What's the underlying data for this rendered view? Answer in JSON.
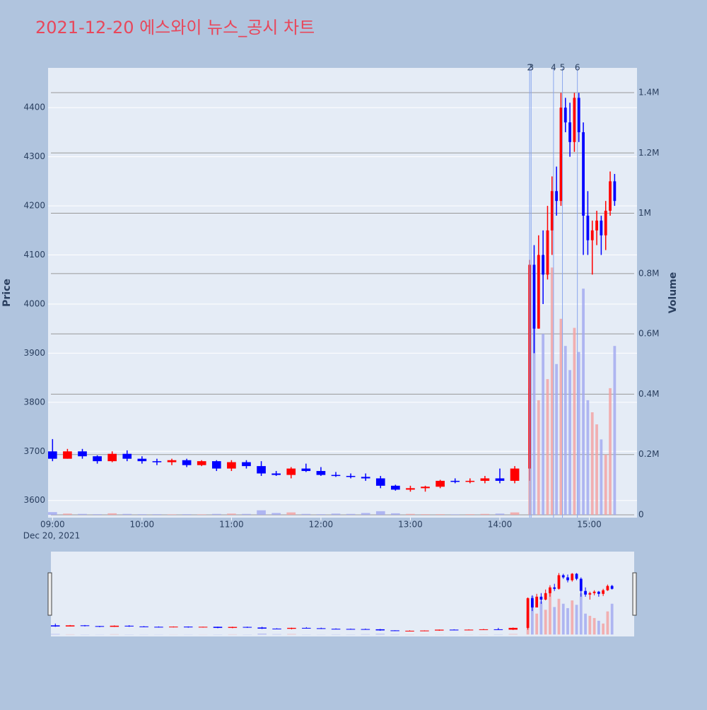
{
  "chart_data": {
    "type": "candlestick",
    "title": "2021-12-20 에스와이 뉴스_공시 차트",
    "y_label": "Price",
    "y2_label": "Volume",
    "x_date_label": "Dec 20, 2021",
    "increasing_color": "#ff0000",
    "decreasing_color": "#0000ff",
    "volume_up_color": "#f4a0a0",
    "volume_down_color": "#a0a8f0",
    "annotation_color": "#8aa6ee",
    "x": [
      "2021-12-20 09:00",
      "2021-12-20 09:10",
      "2021-12-20 09:20",
      "2021-12-20 09:30",
      "2021-12-20 09:40",
      "2021-12-20 09:50",
      "2021-12-20 10:00",
      "2021-12-20 10:10",
      "2021-12-20 10:20",
      "2021-12-20 10:30",
      "2021-12-20 10:40",
      "2021-12-20 10:50",
      "2021-12-20 11:00",
      "2021-12-20 11:10",
      "2021-12-20 11:20",
      "2021-12-20 11:30",
      "2021-12-20 11:40",
      "2021-12-20 11:50",
      "2021-12-20 12:00",
      "2021-12-20 12:10",
      "2021-12-20 12:20",
      "2021-12-20 12:30",
      "2021-12-20 12:40",
      "2021-12-20 12:50",
      "2021-12-20 13:00",
      "2021-12-20 13:10",
      "2021-12-20 13:20",
      "2021-12-20 13:30",
      "2021-12-20 13:40",
      "2021-12-20 13:50",
      "2021-12-20 14:00",
      "2021-12-20 14:10",
      "2021-12-20 14:20",
      "2021-12-20 14:23",
      "2021-12-20 14:26",
      "2021-12-20 14:29",
      "2021-12-20 14:32",
      "2021-12-20 14:35",
      "2021-12-20 14:38",
      "2021-12-20 14:41",
      "2021-12-20 14:44",
      "2021-12-20 14:47",
      "2021-12-20 14:50",
      "2021-12-20 14:53",
      "2021-12-20 14:56",
      "2021-12-20 14:59",
      "2021-12-20 15:02",
      "2021-12-20 15:05",
      "2021-12-20 15:08",
      "2021-12-20 15:11",
      "2021-12-20 15:14",
      "2021-12-20 15:17"
    ],
    "open": [
      3700,
      3685,
      3700,
      3690,
      3680,
      3695,
      3685,
      3680,
      3678,
      3682,
      3672,
      3680,
      3665,
      3678,
      3670,
      3655,
      3652,
      3665,
      3660,
      3652,
      3650,
      3648,
      3645,
      3630,
      3622,
      3625,
      3628,
      3640,
      3638,
      3640,
      3645,
      3640,
      3665,
      4080,
      3950,
      4100,
      4060,
      4150,
      4230,
      4210,
      4400,
      4370,
      4330,
      4420,
      4350,
      4180,
      4130,
      4150,
      4170,
      4140,
      4190,
      4250
    ],
    "high": [
      3725,
      3705,
      3705,
      3692,
      3700,
      3702,
      3690,
      3685,
      3685,
      3685,
      3682,
      3682,
      3682,
      3682,
      3680,
      3660,
      3668,
      3675,
      3668,
      3658,
      3655,
      3655,
      3650,
      3632,
      3630,
      3630,
      3642,
      3645,
      3645,
      3650,
      3665,
      3670,
      4090,
      4120,
      4140,
      4150,
      4200,
      4260,
      4280,
      4430,
      4420,
      4410,
      4430,
      4430,
      4370,
      4230,
      4170,
      4190,
      4180,
      4210,
      4270,
      4265
    ],
    "low": [
      3680,
      3685,
      3685,
      3675,
      3678,
      3680,
      3675,
      3672,
      3672,
      3668,
      3670,
      3660,
      3660,
      3665,
      3650,
      3650,
      3645,
      3658,
      3650,
      3648,
      3645,
      3640,
      3625,
      3620,
      3618,
      3618,
      3625,
      3635,
      3635,
      3635,
      3635,
      3635,
      3640,
      3900,
      3950,
      4000,
      4050,
      4100,
      4180,
      4200,
      4350,
      4300,
      4310,
      4330,
      4100,
      4100,
      4060,
      4120,
      4100,
      4110,
      4180,
      4200
    ],
    "close": [
      3685,
      3700,
      3690,
      3680,
      3695,
      3685,
      3680,
      3678,
      3682,
      3672,
      3680,
      3665,
      3678,
      3670,
      3655,
      3652,
      3665,
      3660,
      3652,
      3650,
      3648,
      3645,
      3630,
      3622,
      3625,
      3628,
      3640,
      3638,
      3640,
      3645,
      3640,
      3665,
      4080,
      3950,
      4100,
      4060,
      4150,
      4230,
      4210,
      4400,
      4370,
      4330,
      4420,
      4350,
      4180,
      4130,
      4150,
      4170,
      4140,
      4190,
      4250,
      4210
    ],
    "volume": [
      9000,
      4000,
      3000,
      2000,
      5000,
      3000,
      2000,
      2000,
      1500,
      2000,
      1500,
      3000,
      4000,
      3000,
      15000,
      6000,
      8000,
      3000,
      2000,
      4000,
      3000,
      6000,
      12000,
      5000,
      3000,
      2000,
      2000,
      1500,
      2000,
      3000,
      4000,
      8000,
      420000,
      700000,
      380000,
      600000,
      450000,
      820000,
      500000,
      650000,
      560000,
      480000,
      620000,
      540000,
      750000,
      380000,
      340000,
      300000,
      250000,
      200000,
      420000,
      560000
    ],
    "xlim": [
      "2021-12-20 08:57",
      "2021-12-20 15:32"
    ],
    "xticks": [
      {
        "value": "2021-12-20 09:00",
        "label": "09:00"
      },
      {
        "value": "2021-12-20 10:00",
        "label": "10:00"
      },
      {
        "value": "2021-12-20 11:00",
        "label": "11:00"
      },
      {
        "value": "2021-12-20 12:00",
        "label": "12:00"
      },
      {
        "value": "2021-12-20 13:00",
        "label": "13:00"
      },
      {
        "value": "2021-12-20 14:00",
        "label": "14:00"
      },
      {
        "value": "2021-12-20 15:00",
        "label": "15:00"
      }
    ],
    "ylim": [
      3565,
      4481
    ],
    "yticks": [
      3600,
      3700,
      3800,
      3900,
      4000,
      4100,
      4200,
      4300,
      4400
    ],
    "y2lim": [
      -9400,
      1482000
    ],
    "y2ticks": [
      {
        "value": 0,
        "label": "0"
      },
      {
        "value": 200000,
        "label": "0.2M"
      },
      {
        "value": 400000,
        "label": "0.4M"
      },
      {
        "value": 600000,
        "label": "0.6M"
      },
      {
        "value": 800000,
        "label": "0.8M"
      },
      {
        "value": 1000000,
        "label": "1M"
      },
      {
        "value": 1200000,
        "label": "1.2M"
      },
      {
        "value": 1400000,
        "label": "1.4M"
      }
    ],
    "annotations": [
      {
        "x": "2021-12-20 14:20",
        "label": "2"
      },
      {
        "x": "2021-12-20 14:21",
        "label": "3"
      },
      {
        "x": "2021-12-20 14:36",
        "label": "4"
      },
      {
        "x": "2021-12-20 14:42",
        "label": "5"
      },
      {
        "x": "2021-12-20 14:52",
        "label": "6"
      }
    ],
    "grid": true
  }
}
